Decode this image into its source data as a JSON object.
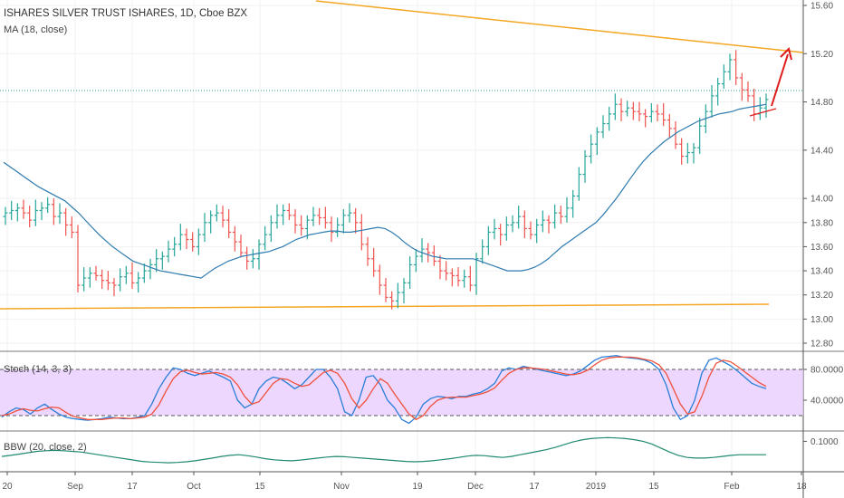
{
  "chart_data": {
    "type": "ohlc",
    "title": "ISHARES SILVER TRUST ISHARES, 1D, Cboe BZX",
    "ma_label": "MA (18, close)",
    "price_axis": {
      "ticks": [
        15.6,
        15.2,
        14.8,
        14.4,
        14.0,
        13.8,
        13.6,
        13.4,
        13.2,
        13.0,
        12.8
      ],
      "range": [
        12.72,
        15.66
      ],
      "current_price_line": 14.84
    },
    "x_labels": [
      "20",
      "Sep",
      "17",
      "Oct",
      "15",
      "Nov",
      "19",
      "Dec",
      "17",
      "2019",
      "15",
      "Feb",
      "18"
    ],
    "colors": {
      "up": "#26a69a",
      "down": "#ef5350",
      "ma": "#2e7bb0",
      "trend": "#f5a623",
      "arrow": "#e01b1b",
      "stoch_k": "#2a7fd8",
      "stoch_d": "#f0503c",
      "stoch_band": "#e7c9ff",
      "bbw": "#1f8a6f"
    },
    "closes": [
      13.88,
      13.9,
      13.92,
      13.88,
      13.82,
      13.9,
      13.92,
      13.95,
      13.85,
      13.88,
      13.78,
      13.72,
      13.28,
      13.34,
      13.38,
      13.36,
      13.32,
      13.3,
      13.28,
      13.35,
      13.38,
      13.3,
      13.34,
      13.4,
      13.45,
      13.5,
      13.52,
      13.58,
      13.62,
      13.7,
      13.66,
      13.6,
      13.7,
      13.8,
      13.86,
      13.88,
      13.82,
      13.72,
      13.64,
      13.55,
      13.48,
      13.5,
      13.62,
      13.7,
      13.8,
      13.86,
      13.9,
      13.86,
      13.78,
      13.75,
      13.82,
      13.86,
      13.84,
      13.8,
      13.72,
      13.78,
      13.86,
      13.88,
      13.8,
      13.62,
      13.5,
      13.4,
      13.28,
      13.18,
      13.15,
      13.22,
      13.3,
      13.45,
      13.52,
      13.58,
      13.55,
      13.48,
      13.4,
      13.38,
      13.36,
      13.32,
      13.35,
      13.28,
      13.5,
      13.6,
      13.72,
      13.75,
      13.7,
      13.78,
      13.8,
      13.85,
      13.75,
      13.7,
      13.78,
      13.82,
      13.8,
      13.88,
      13.85,
      13.92,
      14.02,
      14.2,
      14.35,
      14.45,
      14.55,
      14.62,
      14.7,
      14.78,
      14.72,
      14.75,
      14.72,
      14.7,
      14.68,
      14.72,
      14.7,
      14.65,
      14.58,
      14.45,
      14.35,
      14.38,
      14.42,
      14.6,
      14.72,
      14.85,
      14.95,
      15.05,
      15.15,
      15.0,
      14.9,
      14.85,
      14.7,
      14.75,
      14.82
    ],
    "ma_values": [
      14.3,
      14.26,
      14.22,
      14.18,
      14.14,
      14.1,
      14.07,
      14.04,
      14.01,
      13.98,
      13.93,
      13.88,
      13.82,
      13.76,
      13.7,
      13.65,
      13.6,
      13.56,
      13.52,
      13.48,
      13.46,
      13.44,
      13.42,
      13.4,
      13.39,
      13.38,
      13.37,
      13.36,
      13.35,
      13.34,
      13.38,
      13.42,
      13.45,
      13.48,
      13.5,
      13.52,
      13.53,
      13.54,
      13.55,
      13.56,
      13.58,
      13.6,
      13.63,
      13.66,
      13.68,
      13.7,
      13.71,
      13.72,
      13.73,
      13.73,
      13.72,
      13.72,
      13.73,
      13.74,
      13.75,
      13.76,
      13.75,
      13.72,
      13.68,
      13.63,
      13.59,
      13.56,
      13.54,
      13.52,
      13.51,
      13.5,
      13.5,
      13.5,
      13.5,
      13.5,
      13.48,
      13.46,
      13.44,
      13.42,
      13.4,
      13.4,
      13.4,
      13.41,
      13.43,
      13.46,
      13.5,
      13.55,
      13.6,
      13.64,
      13.68,
      13.72,
      13.76,
      13.8,
      13.86,
      13.93,
      14.0,
      14.08,
      14.16,
      14.24,
      14.31,
      14.37,
      14.42,
      14.47,
      14.51,
      14.55,
      14.58,
      14.61,
      14.64,
      14.66,
      14.68,
      14.7,
      14.71,
      14.72,
      14.74,
      14.75,
      14.76,
      14.77,
      14.78
    ],
    "stoch_k": [
      18,
      25,
      30,
      28,
      22,
      30,
      35,
      28,
      22,
      18,
      16,
      15,
      14,
      15,
      16,
      18,
      17,
      16,
      16,
      18,
      20,
      35,
      55,
      70,
      82,
      80,
      75,
      72,
      75,
      78,
      74,
      70,
      65,
      40,
      30,
      35,
      55,
      65,
      70,
      68,
      62,
      55,
      60,
      70,
      80,
      80,
      70,
      55,
      25,
      20,
      40,
      70,
      72,
      60,
      40,
      30,
      15,
      10,
      18,
      35,
      42,
      45,
      44,
      42,
      45,
      45,
      48,
      50,
      55,
      62,
      78,
      82,
      80,
      84,
      82,
      80,
      78,
      76,
      74,
      72,
      74,
      78,
      85,
      92,
      96,
      97,
      98,
      96,
      95,
      94,
      92,
      88,
      80,
      60,
      30,
      15,
      20,
      40,
      75,
      92,
      95,
      90,
      85,
      78,
      70,
      62,
      58,
      55
    ],
    "stoch_d": [
      20,
      22,
      26,
      29,
      27,
      26,
      29,
      31,
      30,
      24,
      19,
      17,
      15,
      15,
      15,
      16,
      17,
      17,
      16,
      17,
      18,
      22,
      34,
      52,
      68,
      77,
      79,
      76,
      74,
      75,
      76,
      74,
      70,
      60,
      45,
      35,
      38,
      50,
      62,
      68,
      67,
      62,
      58,
      60,
      68,
      76,
      79,
      75,
      62,
      42,
      30,
      40,
      55,
      68,
      62,
      48,
      35,
      22,
      15,
      20,
      32,
      40,
      43,
      44,
      44,
      44,
      46,
      48,
      51,
      56,
      66,
      75,
      80,
      82,
      82,
      81,
      80,
      78,
      76,
      74,
      73,
      75,
      79,
      86,
      92,
      95,
      96,
      96,
      96,
      95,
      93,
      91,
      86,
      75,
      55,
      35,
      22,
      25,
      45,
      70,
      88,
      92,
      90,
      84,
      77,
      70,
      63,
      58
    ],
    "bbw_values": [
      0.055,
      0.058,
      0.062,
      0.066,
      0.07,
      0.072,
      0.073,
      0.072,
      0.07,
      0.068,
      0.064,
      0.06,
      0.056,
      0.052,
      0.048,
      0.044,
      0.04,
      0.038,
      0.037,
      0.036,
      0.037,
      0.039,
      0.042,
      0.046,
      0.05,
      0.055,
      0.058,
      0.06,
      0.057,
      0.053,
      0.048,
      0.045,
      0.043,
      0.042,
      0.044,
      0.047,
      0.05,
      0.053,
      0.055,
      0.054,
      0.052,
      0.05,
      0.048,
      0.046,
      0.044,
      0.042,
      0.04,
      0.039,
      0.04,
      0.042,
      0.045,
      0.048,
      0.052,
      0.056,
      0.058,
      0.057,
      0.054,
      0.052,
      0.055,
      0.06,
      0.065,
      0.07,
      0.075,
      0.082,
      0.09,
      0.098,
      0.104,
      0.108,
      0.11,
      0.111,
      0.11,
      0.108,
      0.105,
      0.1,
      0.092,
      0.08,
      0.068,
      0.058,
      0.052,
      0.05,
      0.05,
      0.052,
      0.055,
      0.058,
      0.06,
      0.06,
      0.06,
      0.06
    ],
    "stoch": {
      "label": "Stoch (14, 3, 3)",
      "ticks": [
        "80.0000",
        "40.0000"
      ],
      "upper": 80,
      "lower": 20,
      "range": [
        0,
        100
      ]
    },
    "bbw": {
      "label": "BBW (20, close, 2)",
      "ticks": [
        "0.1000"
      ],
      "range": [
        0.02,
        0.12
      ]
    }
  }
}
